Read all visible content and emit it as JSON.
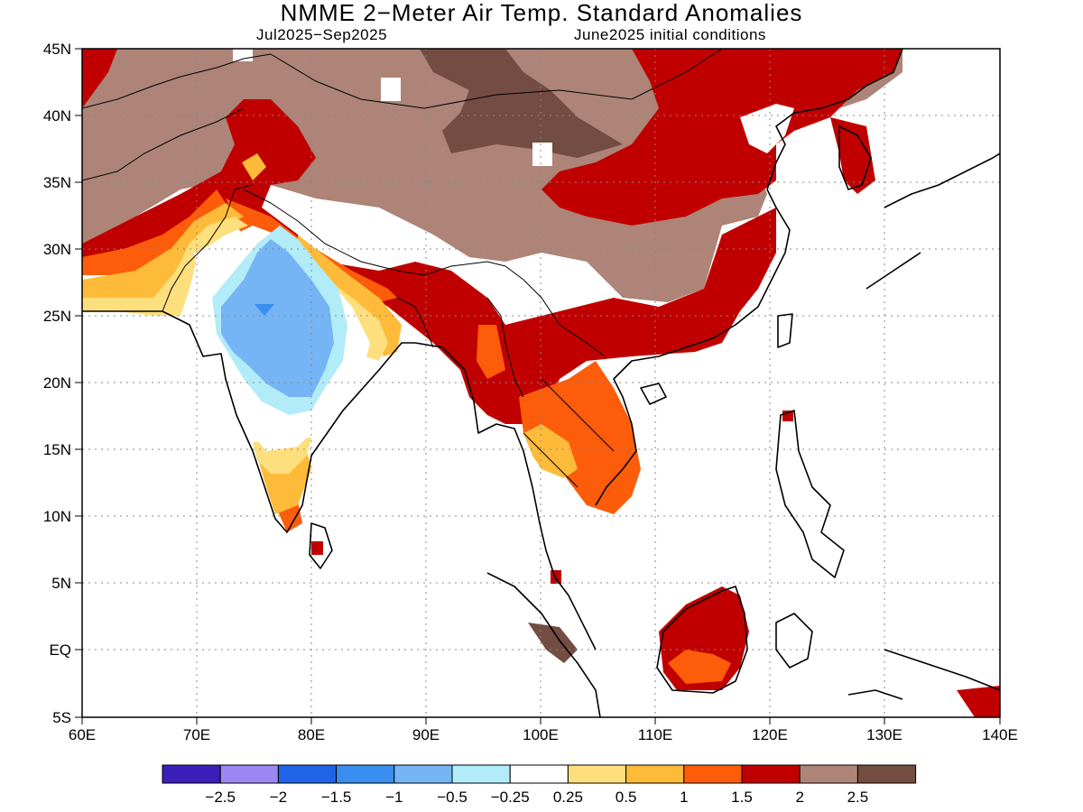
{
  "header": {
    "title": "NMME 2−Meter Air Temp. Standard Anomalies",
    "period": "Jul2025−Sep2025",
    "initial_conditions": "June2025 initial conditions"
  },
  "map": {
    "lon_range": [
      60,
      140
    ],
    "lat_range": [
      -5,
      45
    ],
    "x_ticks": [
      "60E",
      "70E",
      "80E",
      "90E",
      "100E",
      "110E",
      "120E",
      "130E",
      "140E"
    ],
    "y_ticks": [
      "45N",
      "40N",
      "35N",
      "30N",
      "25N",
      "20N",
      "15N",
      "10N",
      "5N",
      "EQ",
      "5S"
    ],
    "grid": true
  },
  "legend": {
    "colors": [
      "#3a1fb8",
      "#9b87f2",
      "#1f63e6",
      "#3a8ef0",
      "#75b4f5",
      "#b2ecf8",
      "#ffffff",
      "#fedf7d",
      "#febb3a",
      "#fd5c0a",
      "#c00000",
      "#ad8477",
      "#734c42"
    ],
    "labels": [
      "−2.5",
      "−2",
      "−1.5",
      "−1",
      "−0.5",
      "−0.25",
      "0.25",
      "0.5",
      "1",
      "1.5",
      "2",
      "2.5"
    ]
  }
}
